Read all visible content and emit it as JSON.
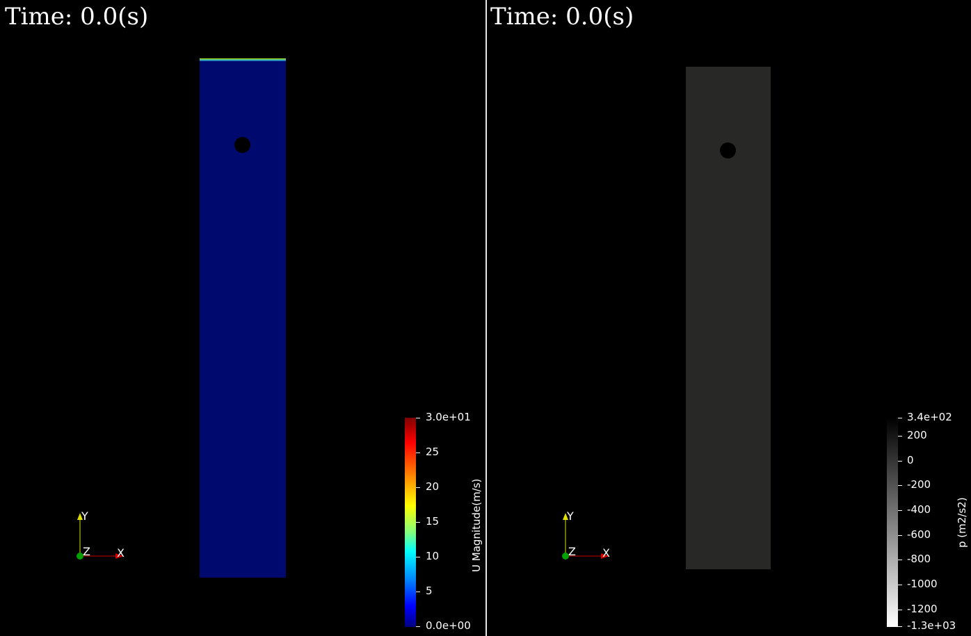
{
  "left_view": {
    "time_label": "Time: 0.0(s)",
    "field_title": "U Magnitude(m/s)",
    "colorbar_ticks": [
      "3.0e+01",
      "25",
      "20",
      "15",
      "10",
      "5",
      "0.0e+00"
    ],
    "colorbar_colors": [
      "#7f0000",
      "#ff0000",
      "#ff8000",
      "#ffff00",
      "#80ff80",
      "#00ffff",
      "#0080ff",
      "#0000ff",
      "#00007f"
    ],
    "domain_color": "#000a6e",
    "axes": {
      "x": "X",
      "y": "Y",
      "z": "Z"
    }
  },
  "right_view": {
    "time_label": "Time: 0.0(s)",
    "field_title": "p (m2/s2)",
    "colorbar_ticks": [
      "3.4e+02",
      "200",
      "0",
      "-200",
      "-400",
      "-600",
      "-800",
      "-1000",
      "-1200",
      "-1.3e+03"
    ],
    "colorbar_colors": [
      "#000000",
      "#ffffff"
    ],
    "domain_color": "#282826",
    "axes": {
      "x": "X",
      "y": "Y",
      "z": "Z"
    }
  }
}
